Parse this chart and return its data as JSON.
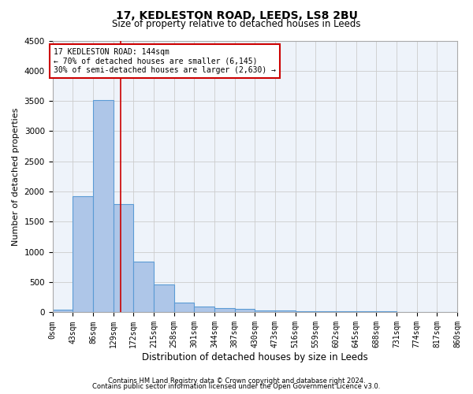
{
  "title": "17, KEDLESTON ROAD, LEEDS, LS8 2BU",
  "subtitle": "Size of property relative to detached houses in Leeds",
  "xlabel": "Distribution of detached houses by size in Leeds",
  "ylabel": "Number of detached properties",
  "annotation_line1": "17 KEDLESTON ROAD: 144sqm",
  "annotation_line2": "← 70% of detached houses are smaller (6,145)",
  "annotation_line3": "30% of semi-detached houses are larger (2,630) →",
  "footer_line1": "Contains HM Land Registry data © Crown copyright and database right 2024.",
  "footer_line2": "Contains public sector information licensed under the Open Government Licence v3.0.",
  "property_size": 144,
  "bar_left_edges": [
    0,
    43,
    86,
    129,
    172,
    215,
    258,
    301,
    344,
    387,
    430,
    473,
    516,
    559,
    602,
    645,
    688,
    731,
    774,
    817
  ],
  "bin_width": 43,
  "bar_heights": [
    40,
    1920,
    3510,
    1790,
    840,
    460,
    165,
    100,
    70,
    55,
    30,
    30,
    25,
    20,
    15,
    15,
    15,
    10,
    10,
    10
  ],
  "tick_labels": [
    "0sqm",
    "43sqm",
    "86sqm",
    "129sqm",
    "172sqm",
    "215sqm",
    "258sqm",
    "301sqm",
    "344sqm",
    "387sqm",
    "430sqm",
    "473sqm",
    "516sqm",
    "559sqm",
    "602sqm",
    "645sqm",
    "688sqm",
    "731sqm",
    "774sqm",
    "817sqm",
    "860sqm"
  ],
  "bar_color": "#aec6e8",
  "bar_edge_color": "#5b9bd5",
  "bar_edge_width": 0.8,
  "vline_color": "#cc0000",
  "annotation_box_color": "#cc0000",
  "grid_color": "#cccccc",
  "background_color": "#eef3fa",
  "ylim": [
    0,
    4500
  ],
  "yticks": [
    0,
    500,
    1000,
    1500,
    2000,
    2500,
    3000,
    3500,
    4000,
    4500
  ],
  "title_fontsize": 10,
  "subtitle_fontsize": 8.5,
  "ylabel_fontsize": 8,
  "xlabel_fontsize": 8.5,
  "tick_fontsize": 7,
  "annotation_fontsize": 7,
  "footer_fontsize": 6
}
